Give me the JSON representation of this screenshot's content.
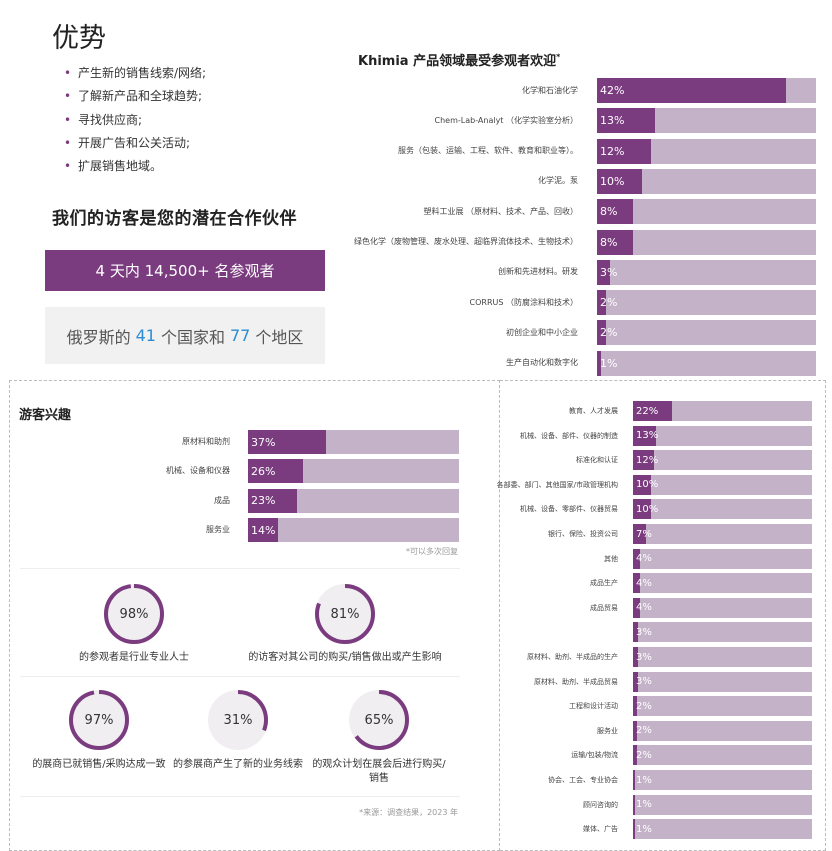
{
  "header": {
    "title": "优势",
    "advantages": [
      "产生新的销售线索/网络;",
      "了解新产品和全球趋势;",
      "寻找供应商;",
      "开展广告和公关活动;",
      "扩展销售地域。"
    ],
    "partner_title": "我们的访客是您的潜在合作伙伴",
    "visitors_text": "4 天内 14,500+ 名参观者",
    "countries": {
      "prefix": "俄罗斯的",
      "countries_num": "41",
      "middle": "个国家和",
      "regions_num": "77",
      "suffix": "个地区"
    }
  },
  "colors": {
    "accent": "#7a3b7f",
    "track": "#c4b2c9",
    "blue": "#2b8bd4"
  },
  "chart_data": [
    {
      "type": "bar",
      "title": "Khimia 产品领域最受参观者欢迎",
      "title_mark": "*",
      "categories": [
        "化学和石油化学",
        "Chem-Lab-Analyt （化学实验室分析）",
        "服务（包装、运输、工程、软件、教育和职业等）。",
        "化学泥。泵",
        "塑料工业展 （原材料、技术、产品、回收）",
        "绿色化学（废物管理、废水处理、超临界流体技术、生物技术）",
        "创新和先进材料。研发",
        "CORRUS （防腐涂料和技术）",
        "初创企业和中小企业",
        "生产自动化和数字化"
      ],
      "values": [
        42,
        13,
        12,
        10,
        8,
        8,
        3,
        2,
        2,
        1
      ],
      "value_labels": [
        "42%",
        "13%",
        "12%",
        "10%",
        "8%",
        "8%",
        "3%",
        "2%",
        "2%",
        "1%"
      ],
      "ylim": [
        0,
        100
      ]
    },
    {
      "type": "bar",
      "title": "游客兴趣",
      "note": "*可以多次回复",
      "categories": [
        "原材料和助剂",
        "机械、设备和仪器",
        "成品",
        "服务业"
      ],
      "values": [
        37,
        26,
        23,
        14
      ],
      "value_labels": [
        "37%",
        "26%",
        "23%",
        "14%"
      ],
      "ylim": [
        0,
        100
      ]
    },
    {
      "type": "bar",
      "categories": [
        "教育、人才发展",
        "机械、设备、部件、仪器的制造",
        "标准化和认证",
        "各部委、部门、其他国家/市政管理机构",
        "机械、设备、零部件、仪器贸易",
        "银行、保险、投资公司",
        "其他",
        "成品生产",
        "成品贸易",
        "",
        "原材料、助剂、半成品的生产",
        "原材料、助剂、半成品贸易",
        "工程和设计活动",
        "服务业",
        "运输/包装/物流",
        "协会、工会、专业协会",
        "顾问咨询的",
        "媒体、广告"
      ],
      "values": [
        22,
        13,
        12,
        10,
        10,
        7,
        4,
        4,
        4,
        3,
        3,
        3,
        2,
        2,
        2,
        1,
        1,
        1
      ],
      "value_labels": [
        "22%",
        "13%",
        "12%",
        "10%",
        "10%",
        "7%",
        "4%",
        "4%",
        "4%",
        "3%",
        "3%",
        "3%",
        "2%",
        "2%",
        "2%",
        "1%",
        "1%",
        "1%"
      ],
      "ylim": [
        0,
        100
      ]
    },
    {
      "type": "pie",
      "style": "donut",
      "items": [
        {
          "value": 98,
          "label": "98%",
          "caption": "的参观者是行业专业人士"
        },
        {
          "value": 81,
          "label": "81%",
          "caption": "的访客对其公司的购买/销售做出或产生影响"
        },
        {
          "value": 97,
          "label": "97%",
          "caption": "的展商已就销售/采购达成一致"
        },
        {
          "value": 31,
          "label": "31%",
          "caption": "的参展商产生了新的业务线索"
        },
        {
          "value": 65,
          "label": "65%",
          "caption": "的观众计划在展会后进行购买/销售"
        }
      ]
    }
  ],
  "source_note": "*来源：调查结果，2023 年"
}
